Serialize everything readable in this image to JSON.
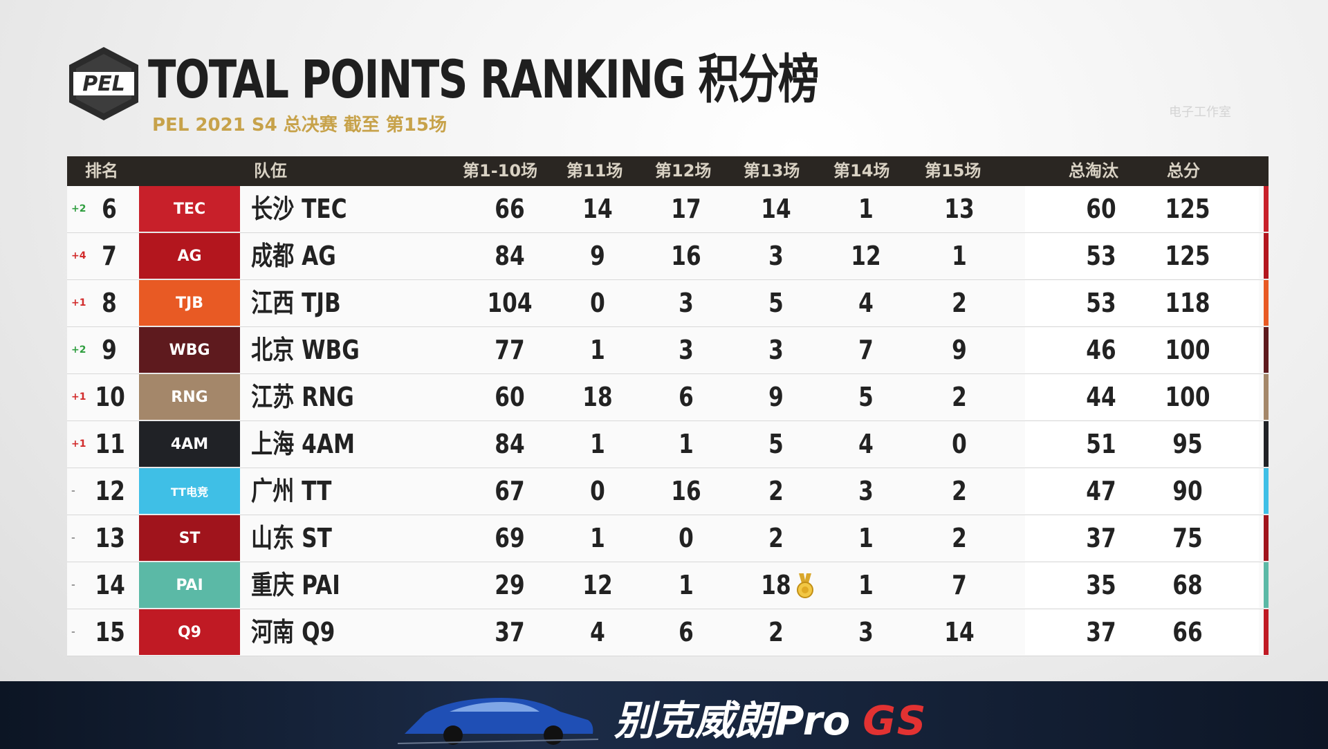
{
  "header": {
    "logo_text": "PEL",
    "title": "TOTAL POINTS RANKING 积分榜",
    "subtitle": "PEL 2021 S4 总决赛 截至 第15场",
    "watermark": "电子工作室"
  },
  "columns": {
    "rank": "排名",
    "team": "队伍",
    "m1_10": "第1-10场",
    "m11": "第11场",
    "m12": "第12场",
    "m13": "第13场",
    "m14": "第14场",
    "m15": "第15场",
    "elims": "总淘汰",
    "total": "总分"
  },
  "rows": [
    {
      "change": "+2",
      "dir": "up",
      "rank": "6",
      "team": "长沙 TEC",
      "logo": "TEC",
      "m1_10": "66",
      "m11": "14",
      "m12": "17",
      "m13": "14",
      "m14": "1",
      "m15": "13",
      "elims": "60",
      "total": "125",
      "color": "#c8202a"
    },
    {
      "change": "+4",
      "dir": "down",
      "rank": "7",
      "team": "成都 AG",
      "logo": "AG",
      "m1_10": "84",
      "m11": "9",
      "m12": "16",
      "m13": "3",
      "m14": "12",
      "m15": "1",
      "elims": "53",
      "total": "125",
      "color": "#b3161e"
    },
    {
      "change": "+1",
      "dir": "down",
      "rank": "8",
      "team": "江西 TJB",
      "logo": "TJB",
      "m1_10": "104",
      "m11": "0",
      "m12": "3",
      "m13": "5",
      "m14": "4",
      "m15": "2",
      "elims": "53",
      "total": "118",
      "color": "#e85a24"
    },
    {
      "change": "+2",
      "dir": "up",
      "rank": "9",
      "team": "北京 WBG",
      "logo": "WBG",
      "m1_10": "77",
      "m11": "1",
      "m12": "3",
      "m13": "3",
      "m14": "7",
      "m15": "9",
      "elims": "46",
      "total": "100",
      "color": "#5e1a1e"
    },
    {
      "change": "+1",
      "dir": "down",
      "rank": "10",
      "team": "江苏 RNG",
      "logo": "RNG",
      "m1_10": "60",
      "m11": "18",
      "m12": "6",
      "m13": "9",
      "m14": "5",
      "m15": "2",
      "elims": "44",
      "total": "100",
      "color": "#a4876a"
    },
    {
      "change": "+1",
      "dir": "down",
      "rank": "11",
      "team": "上海 4AM",
      "logo": "4AM",
      "m1_10": "84",
      "m11": "1",
      "m12": "1",
      "m13": "5",
      "m14": "4",
      "m15": "0",
      "elims": "51",
      "total": "95",
      "color": "#202226"
    },
    {
      "change": "-",
      "dir": "same",
      "rank": "12",
      "team": "广州 TT",
      "logo": "TT电竞",
      "m1_10": "67",
      "m11": "0",
      "m12": "16",
      "m13": "2",
      "m14": "3",
      "m15": "2",
      "elims": "47",
      "total": "90",
      "color": "#3fbfe6"
    },
    {
      "change": "-",
      "dir": "same",
      "rank": "13",
      "team": "山东 ST",
      "logo": "ST",
      "m1_10": "69",
      "m11": "1",
      "m12": "0",
      "m13": "2",
      "m14": "1",
      "m15": "2",
      "elims": "37",
      "total": "75",
      "color": "#a0141c"
    },
    {
      "change": "-",
      "dir": "same",
      "rank": "14",
      "team": "重庆 PAI",
      "logo": "PAI",
      "m1_10": "29",
      "m11": "12",
      "m12": "1",
      "m13": "18",
      "m14": "1",
      "m15": "7",
      "elims": "35",
      "total": "68",
      "color": "#5bb9a6",
      "medal": true
    },
    {
      "change": "-",
      "dir": "same",
      "rank": "15",
      "team": "河南 Q9",
      "logo": "Q9",
      "m1_10": "37",
      "m11": "4",
      "m12": "6",
      "m13": "2",
      "m14": "3",
      "m15": "14",
      "elims": "37",
      "total": "66",
      "color": "#c01a24"
    }
  ],
  "banner": {
    "text": "别克威朗Pro",
    "brand": "GS"
  }
}
